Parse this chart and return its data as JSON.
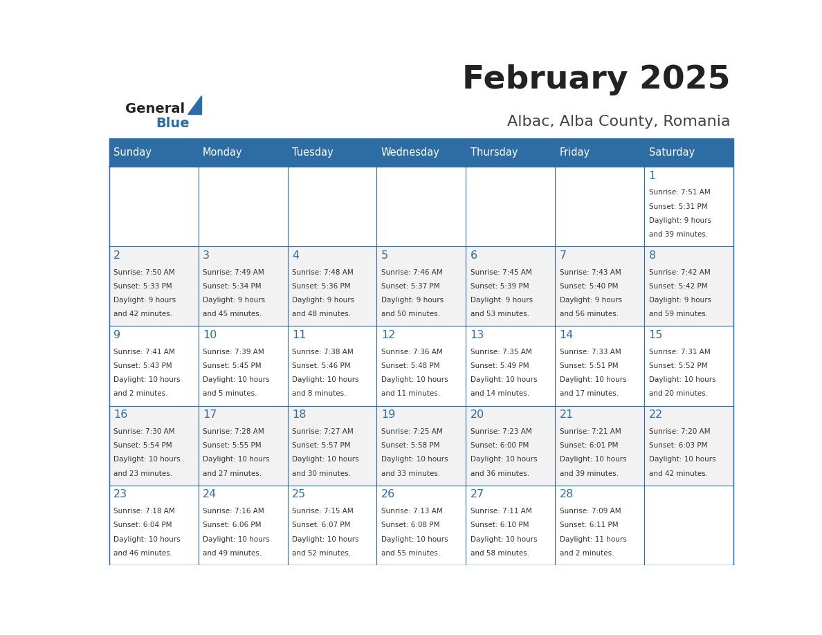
{
  "title": "February 2025",
  "subtitle": "Albac, Alba County, Romania",
  "days_of_week": [
    "Sunday",
    "Monday",
    "Tuesday",
    "Wednesday",
    "Thursday",
    "Friday",
    "Saturday"
  ],
  "header_bg": "#2E6DA4",
  "header_text_color": "#FFFFFF",
  "cell_bg_even": "#F2F2F2",
  "cell_bg_odd": "#FFFFFF",
  "cell_border_color": "#2E6DA4",
  "day_number_color": "#2E6DA4",
  "text_color": "#333333",
  "title_color": "#222222",
  "subtitle_color": "#444444",
  "logo_general_color": "#222222",
  "logo_blue_color": "#2E6DA4",
  "calendar_data": [
    {
      "day": 1,
      "row": 0,
      "col": 6,
      "sunrise": "7:51 AM",
      "sunset": "5:31 PM",
      "daylight_h": "9 hours",
      "daylight_m": "and 39 minutes."
    },
    {
      "day": 2,
      "row": 1,
      "col": 0,
      "sunrise": "7:50 AM",
      "sunset": "5:33 PM",
      "daylight_h": "9 hours",
      "daylight_m": "and 42 minutes."
    },
    {
      "day": 3,
      "row": 1,
      "col": 1,
      "sunrise": "7:49 AM",
      "sunset": "5:34 PM",
      "daylight_h": "9 hours",
      "daylight_m": "and 45 minutes."
    },
    {
      "day": 4,
      "row": 1,
      "col": 2,
      "sunrise": "7:48 AM",
      "sunset": "5:36 PM",
      "daylight_h": "9 hours",
      "daylight_m": "and 48 minutes."
    },
    {
      "day": 5,
      "row": 1,
      "col": 3,
      "sunrise": "7:46 AM",
      "sunset": "5:37 PM",
      "daylight_h": "9 hours",
      "daylight_m": "and 50 minutes."
    },
    {
      "day": 6,
      "row": 1,
      "col": 4,
      "sunrise": "7:45 AM",
      "sunset": "5:39 PM",
      "daylight_h": "9 hours",
      "daylight_m": "and 53 minutes."
    },
    {
      "day": 7,
      "row": 1,
      "col": 5,
      "sunrise": "7:43 AM",
      "sunset": "5:40 PM",
      "daylight_h": "9 hours",
      "daylight_m": "and 56 minutes."
    },
    {
      "day": 8,
      "row": 1,
      "col": 6,
      "sunrise": "7:42 AM",
      "sunset": "5:42 PM",
      "daylight_h": "9 hours",
      "daylight_m": "and 59 minutes."
    },
    {
      "day": 9,
      "row": 2,
      "col": 0,
      "sunrise": "7:41 AM",
      "sunset": "5:43 PM",
      "daylight_h": "10 hours",
      "daylight_m": "and 2 minutes."
    },
    {
      "day": 10,
      "row": 2,
      "col": 1,
      "sunrise": "7:39 AM",
      "sunset": "5:45 PM",
      "daylight_h": "10 hours",
      "daylight_m": "and 5 minutes."
    },
    {
      "day": 11,
      "row": 2,
      "col": 2,
      "sunrise": "7:38 AM",
      "sunset": "5:46 PM",
      "daylight_h": "10 hours",
      "daylight_m": "and 8 minutes."
    },
    {
      "day": 12,
      "row": 2,
      "col": 3,
      "sunrise": "7:36 AM",
      "sunset": "5:48 PM",
      "daylight_h": "10 hours",
      "daylight_m": "and 11 minutes."
    },
    {
      "day": 13,
      "row": 2,
      "col": 4,
      "sunrise": "7:35 AM",
      "sunset": "5:49 PM",
      "daylight_h": "10 hours",
      "daylight_m": "and 14 minutes."
    },
    {
      "day": 14,
      "row": 2,
      "col": 5,
      "sunrise": "7:33 AM",
      "sunset": "5:51 PM",
      "daylight_h": "10 hours",
      "daylight_m": "and 17 minutes."
    },
    {
      "day": 15,
      "row": 2,
      "col": 6,
      "sunrise": "7:31 AM",
      "sunset": "5:52 PM",
      "daylight_h": "10 hours",
      "daylight_m": "and 20 minutes."
    },
    {
      "day": 16,
      "row": 3,
      "col": 0,
      "sunrise": "7:30 AM",
      "sunset": "5:54 PM",
      "daylight_h": "10 hours",
      "daylight_m": "and 23 minutes."
    },
    {
      "day": 17,
      "row": 3,
      "col": 1,
      "sunrise": "7:28 AM",
      "sunset": "5:55 PM",
      "daylight_h": "10 hours",
      "daylight_m": "and 27 minutes."
    },
    {
      "day": 18,
      "row": 3,
      "col": 2,
      "sunrise": "7:27 AM",
      "sunset": "5:57 PM",
      "daylight_h": "10 hours",
      "daylight_m": "and 30 minutes."
    },
    {
      "day": 19,
      "row": 3,
      "col": 3,
      "sunrise": "7:25 AM",
      "sunset": "5:58 PM",
      "daylight_h": "10 hours",
      "daylight_m": "and 33 minutes."
    },
    {
      "day": 20,
      "row": 3,
      "col": 4,
      "sunrise": "7:23 AM",
      "sunset": "6:00 PM",
      "daylight_h": "10 hours",
      "daylight_m": "and 36 minutes."
    },
    {
      "day": 21,
      "row": 3,
      "col": 5,
      "sunrise": "7:21 AM",
      "sunset": "6:01 PM",
      "daylight_h": "10 hours",
      "daylight_m": "and 39 minutes."
    },
    {
      "day": 22,
      "row": 3,
      "col": 6,
      "sunrise": "7:20 AM",
      "sunset": "6:03 PM",
      "daylight_h": "10 hours",
      "daylight_m": "and 42 minutes."
    },
    {
      "day": 23,
      "row": 4,
      "col": 0,
      "sunrise": "7:18 AM",
      "sunset": "6:04 PM",
      "daylight_h": "10 hours",
      "daylight_m": "and 46 minutes."
    },
    {
      "day": 24,
      "row": 4,
      "col": 1,
      "sunrise": "7:16 AM",
      "sunset": "6:06 PM",
      "daylight_h": "10 hours",
      "daylight_m": "and 49 minutes."
    },
    {
      "day": 25,
      "row": 4,
      "col": 2,
      "sunrise": "7:15 AM",
      "sunset": "6:07 PM",
      "daylight_h": "10 hours",
      "daylight_m": "and 52 minutes."
    },
    {
      "day": 26,
      "row": 4,
      "col": 3,
      "sunrise": "7:13 AM",
      "sunset": "6:08 PM",
      "daylight_h": "10 hours",
      "daylight_m": "and 55 minutes."
    },
    {
      "day": 27,
      "row": 4,
      "col": 4,
      "sunrise": "7:11 AM",
      "sunset": "6:10 PM",
      "daylight_h": "10 hours",
      "daylight_m": "and 58 minutes."
    },
    {
      "day": 28,
      "row": 4,
      "col": 5,
      "sunrise": "7:09 AM",
      "sunset": "6:11 PM",
      "daylight_h": "11 hours",
      "daylight_m": "and 2 minutes."
    }
  ]
}
